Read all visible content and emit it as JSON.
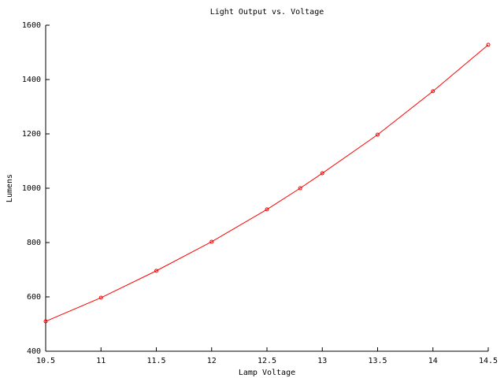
{
  "chart_data": {
    "type": "line",
    "title": "Light Output vs. Voltage",
    "x_label": "Lamp Voltage",
    "y_label": "Lumens",
    "x": [
      10.5,
      11,
      11.5,
      12,
      12.5,
      12.8,
      13,
      13.5,
      14,
      14.5
    ],
    "series": [
      {
        "name": "Lumens",
        "color": "#ff0000",
        "values": [
          510,
          597,
          696,
          803,
          922,
          1000,
          1055,
          1197,
          1357,
          1528
        ]
      }
    ],
    "xlim": [
      10.5,
      14.5
    ],
    "xticks": [
      10.5,
      11,
      11.5,
      12,
      12.5,
      13,
      13.5,
      14,
      14.5
    ],
    "ylim": [
      400,
      1600
    ],
    "yticks": [
      400,
      600,
      800,
      1000,
      1200,
      1400,
      1600
    ],
    "grid": false
  }
}
